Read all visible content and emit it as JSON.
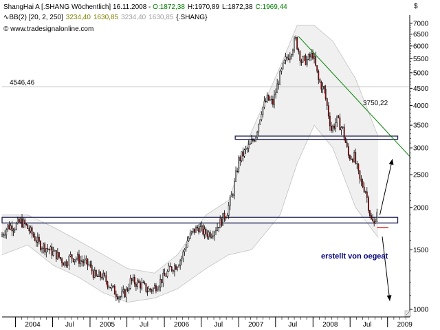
{
  "header": {
    "line1_prefix": "ShangHai A [.SHANG  Wöchentlich] 16.11.2008 - ",
    "open": "O:1872,38",
    "high": "H:1970,89",
    "low": "L:1872,38",
    "close": "C:1969,44",
    "line2_prefix": "BB(2) [20, 2, 250]",
    "bb_upper": "3234,40",
    "bb_lower": "1630,85",
    "bb_upper2": "3234,40",
    "bb_lower2": "1630,85",
    "line2_suffix": "{.SHANG}",
    "copyright": "© www.tradesignalonline.com"
  },
  "colors": {
    "header_green": "#008000",
    "header_olive": "#808000",
    "header_gray": "#a0a0a0",
    "up_candle": "#ffffff",
    "down_candle": "#cc0000",
    "bollinger_fill": "#f0f0f0",
    "bollinger_line": "#c0c0c0",
    "trendline": "#008000",
    "channel_border": "#1a1a50",
    "target_line": "#e00000",
    "annotation_blue": "#000080",
    "level_line": "#c0c0c0"
  },
  "chart_data": {
    "type": "candlestick",
    "title": "ShangHai A [.SHANG  Wöchentlich] 16.11.2008",
    "y_scale": "log",
    "y_currency": "$",
    "ylim": [
      950,
      7400
    ],
    "y_ticks": [
      1000,
      1500,
      2000,
      2500,
      3000,
      3500,
      4000,
      4500,
      5000,
      5500,
      6000,
      6500,
      7000
    ],
    "y_tick_labels": [
      "1000",
      "1500",
      "2000",
      "2500",
      "3000",
      "3500",
      "4000",
      "4500",
      "5000",
      "5500",
      "6000",
      "6500",
      "7000"
    ],
    "x_range": [
      "2003-10-27",
      "2009-04-20"
    ],
    "x_ticks": [
      {
        "date": "2004-01-01",
        "label": "2004"
      },
      {
        "date": "2004-07-01",
        "label": "Jul"
      },
      {
        "date": "2005-01-01",
        "label": "2005"
      },
      {
        "date": "2005-07-01",
        "label": "Jul"
      },
      {
        "date": "2006-01-01",
        "label": "2006"
      },
      {
        "date": "2006-07-01",
        "label": "Jul"
      },
      {
        "date": "2007-01-01",
        "label": "2007"
      },
      {
        "date": "2007-07-01",
        "label": "Jul"
      },
      {
        "date": "2008-01-01",
        "label": "2008"
      },
      {
        "date": "2008-07-01",
        "label": "Jul"
      },
      {
        "date": "2009-01-01",
        "label": "2009"
      }
    ],
    "price_path": [
      [
        "2003-10-27",
        1640
      ],
      [
        "2003-12-01",
        1760
      ],
      [
        "2004-01-05",
        1760
      ],
      [
        "2004-02-02",
        1820
      ],
      [
        "2004-03-01",
        1760
      ],
      [
        "2004-04-05",
        1650
      ],
      [
        "2004-05-03",
        1560
      ],
      [
        "2004-06-07",
        1520
      ],
      [
        "2004-07-05",
        1480
      ],
      [
        "2004-08-02",
        1440
      ],
      [
        "2004-09-06",
        1370
      ],
      [
        "2004-10-04",
        1430
      ],
      [
        "2004-11-01",
        1420
      ],
      [
        "2004-12-06",
        1380
      ],
      [
        "2005-01-03",
        1350
      ],
      [
        "2005-02-07",
        1240
      ],
      [
        "2005-03-07",
        1260
      ],
      [
        "2005-04-04",
        1200
      ],
      [
        "2005-05-02",
        1140
      ],
      [
        "2005-06-06",
        1090
      ],
      [
        "2005-07-04",
        1130
      ],
      [
        "2005-07-25",
        1210
      ],
      [
        "2005-08-22",
        1200
      ],
      [
        "2005-09-19",
        1180
      ],
      [
        "2005-10-17",
        1140
      ],
      [
        "2005-11-14",
        1150
      ],
      [
        "2005-12-12",
        1200
      ],
      [
        "2006-01-09",
        1250
      ],
      [
        "2006-02-06",
        1320
      ],
      [
        "2006-03-06",
        1350
      ],
      [
        "2006-04-03",
        1420
      ],
      [
        "2006-05-01",
        1600
      ],
      [
        "2006-05-29",
        1700
      ],
      [
        "2006-06-26",
        1750
      ],
      [
        "2006-07-24",
        1680
      ],
      [
        "2006-08-21",
        1680
      ],
      [
        "2006-09-18",
        1740
      ],
      [
        "2006-10-16",
        1830
      ],
      [
        "2006-11-13",
        1950
      ],
      [
        "2006-12-11",
        2230
      ],
      [
        "2007-01-08",
        2760
      ],
      [
        "2007-02-05",
        2910
      ],
      [
        "2007-03-05",
        3050
      ],
      [
        "2007-04-02",
        3280
      ],
      [
        "2007-04-30",
        3880
      ],
      [
        "2007-05-28",
        4180
      ],
      [
        "2007-06-25",
        4070
      ],
      [
        "2007-07-23",
        4750
      ],
      [
        "2007-08-20",
        5340
      ],
      [
        "2007-09-17",
        5740
      ],
      [
        "2007-10-15",
        6250
      ],
      [
        "2007-11-12",
        5420
      ],
      [
        "2007-12-10",
        5450
      ],
      [
        "2008-01-07",
        5670
      ],
      [
        "2008-02-04",
        4750
      ],
      [
        "2008-03-03",
        4420
      ],
      [
        "2008-04-07",
        3400
      ],
      [
        "2008-05-05",
        3620
      ],
      [
        "2008-06-02",
        3400
      ],
      [
        "2008-06-30",
        2840
      ],
      [
        "2008-07-28",
        2820
      ],
      [
        "2008-08-25",
        2400
      ],
      [
        "2008-09-22",
        2250
      ],
      [
        "2008-10-20",
        1830
      ],
      [
        "2008-11-03",
        1780
      ],
      [
        "2008-11-10",
        1880
      ],
      [
        "2008-11-16",
        1969
      ]
    ],
    "bollinger_upper": [
      [
        "2003-10-27",
        1900
      ],
      [
        "2004-03-01",
        1900
      ],
      [
        "2004-07-05",
        1750
      ],
      [
        "2004-11-01",
        1600
      ],
      [
        "2005-03-07",
        1450
      ],
      [
        "2005-07-04",
        1320
      ],
      [
        "2005-11-14",
        1280
      ],
      [
        "2006-03-06",
        1450
      ],
      [
        "2006-07-24",
        1900
      ],
      [
        "2006-11-13",
        2100
      ],
      [
        "2007-03-05",
        3350
      ],
      [
        "2007-07-23",
        5200
      ],
      [
        "2007-10-15",
        6900
      ],
      [
        "2008-01-07",
        6900
      ],
      [
        "2008-04-07",
        6200
      ],
      [
        "2008-07-28",
        4800
      ],
      [
        "2008-11-16",
        3234
      ]
    ],
    "bollinger_lower": [
      [
        "2003-10-27",
        1450
      ],
      [
        "2004-03-01",
        1550
      ],
      [
        "2004-07-05",
        1350
      ],
      [
        "2004-11-01",
        1250
      ],
      [
        "2005-03-07",
        1120
      ],
      [
        "2005-07-04",
        1050
      ],
      [
        "2005-11-14",
        1080
      ],
      [
        "2006-03-06",
        1150
      ],
      [
        "2006-07-24",
        1320
      ],
      [
        "2006-11-13",
        1450
      ],
      [
        "2007-03-05",
        1500
      ],
      [
        "2007-07-23",
        1900
      ],
      [
        "2007-10-15",
        2700
      ],
      [
        "2008-01-07",
        3500
      ],
      [
        "2008-04-07",
        3000
      ],
      [
        "2008-07-28",
        2000
      ],
      [
        "2008-11-16",
        1630
      ]
    ],
    "horizontal_level": {
      "value": 4546.46,
      "label": "4546,46"
    },
    "trendline": {
      "start": [
        "2007-10-22",
        6400
      ],
      "end": [
        "2009-04-20",
        2830
      ],
      "label": "3750,22"
    },
    "upper_channel": {
      "start_date": "2006-12-15",
      "end_date": "2009-02-20",
      "low": 3180,
      "high": 3250
    },
    "lower_channel": {
      "start_date": "2003-10-27",
      "end_date": "2009-02-20",
      "low": 1800,
      "high": 1870
    },
    "target_line": {
      "start_date": "2008-11-10",
      "end_date": "2009-01-05",
      "value": 1745
    },
    "arrows": [
      {
        "from": [
          "2008-11-24",
          1900
        ],
        "to": [
          "2009-01-25",
          2780
        ]
      },
      {
        "from": [
          "2008-12-06",
          1640
        ],
        "to": [
          "2009-01-12",
          1060
        ]
      }
    ],
    "annotation": {
      "text": "erstellt von oegeat",
      "date": "2008-06-15",
      "value": 1440
    }
  }
}
